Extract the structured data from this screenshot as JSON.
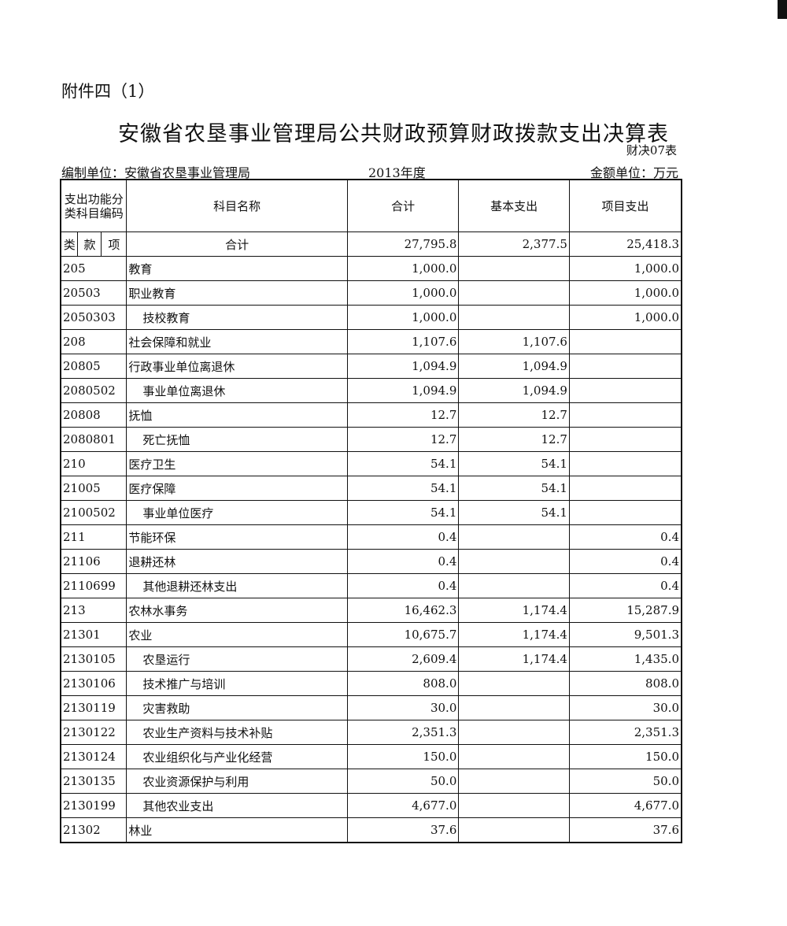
{
  "attachment": "附件四（1）",
  "title": "安徽省农垦事业管理局公共财政预算财政拨款支出决算表",
  "form_code": "财决07表",
  "unit": "编制单位：安徽省农垦事业管理局",
  "year": "2013年度",
  "currency": "金额单位：万元",
  "headers": {
    "code": "支出功能分类科目编码",
    "name": "科目名称",
    "total": "合计",
    "basic": "基本支出",
    "project": "项目支出"
  },
  "sub_headers": [
    "类",
    "款",
    "项"
  ],
  "total_row": {
    "name": "合计",
    "total": "27,795.8",
    "basic": "2,377.5",
    "project": "25,418.3"
  },
  "rows": [
    {
      "code": "205",
      "name": "教育",
      "total": "1,000.0",
      "basic": "",
      "project": "1,000.0"
    },
    {
      "code": "20503",
      "name": "职业教育",
      "total": "1,000.0",
      "basic": "",
      "project": "1,000.0"
    },
    {
      "code": "2050303",
      "name": "技校教育",
      "total": "1,000.0",
      "basic": "",
      "project": "1,000.0"
    },
    {
      "code": "208",
      "name": "社会保障和就业",
      "total": "1,107.6",
      "basic": "1,107.6",
      "project": ""
    },
    {
      "code": "20805",
      "name": "行政事业单位离退休",
      "total": "1,094.9",
      "basic": "1,094.9",
      "project": ""
    },
    {
      "code": "2080502",
      "name": "事业单位离退休",
      "total": "1,094.9",
      "basic": "1,094.9",
      "project": ""
    },
    {
      "code": "20808",
      "name": "抚恤",
      "total": "12.7",
      "basic": "12.7",
      "project": ""
    },
    {
      "code": "2080801",
      "name": "死亡抚恤",
      "total": "12.7",
      "basic": "12.7",
      "project": ""
    },
    {
      "code": "210",
      "name": "医疗卫生",
      "total": "54.1",
      "basic": "54.1",
      "project": ""
    },
    {
      "code": "21005",
      "name": "医疗保障",
      "total": "54.1",
      "basic": "54.1",
      "project": ""
    },
    {
      "code": "2100502",
      "name": "事业单位医疗",
      "total": "54.1",
      "basic": "54.1",
      "project": ""
    },
    {
      "code": "211",
      "name": "节能环保",
      "total": "0.4",
      "basic": "",
      "project": "0.4"
    },
    {
      "code": "21106",
      "name": "退耕还林",
      "total": "0.4",
      "basic": "",
      "project": "0.4"
    },
    {
      "code": "2110699",
      "name": "其他退耕还林支出",
      "total": "0.4",
      "basic": "",
      "project": "0.4"
    },
    {
      "code": "213",
      "name": "农林水事务",
      "total": "16,462.3",
      "basic": "1,174.4",
      "project": "15,287.9"
    },
    {
      "code": "21301",
      "name": "农业",
      "total": "10,675.7",
      "basic": "1,174.4",
      "project": "9,501.3"
    },
    {
      "code": "2130105",
      "name": "农垦运行",
      "total": "2,609.4",
      "basic": "1,174.4",
      "project": "1,435.0"
    },
    {
      "code": "2130106",
      "name": "技术推广与培训",
      "total": "808.0",
      "basic": "",
      "project": "808.0"
    },
    {
      "code": "2130119",
      "name": "灾害救助",
      "total": "30.0",
      "basic": "",
      "project": "30.0"
    },
    {
      "code": "2130122",
      "name": "农业生产资料与技术补贴",
      "total": "2,351.3",
      "basic": "",
      "project": "2,351.3"
    },
    {
      "code": "2130124",
      "name": "农业组织化与产业化经营",
      "total": "150.0",
      "basic": "",
      "project": "150.0"
    },
    {
      "code": "2130135",
      "name": "农业资源保护与利用",
      "total": "50.0",
      "basic": "",
      "project": "50.0"
    },
    {
      "code": "2130199",
      "name": "其他农业支出",
      "total": "4,677.0",
      "basic": "",
      "project": "4,677.0"
    },
    {
      "code": "21302",
      "name": "林业",
      "total": "37.6",
      "basic": "",
      "project": "37.6"
    }
  ]
}
